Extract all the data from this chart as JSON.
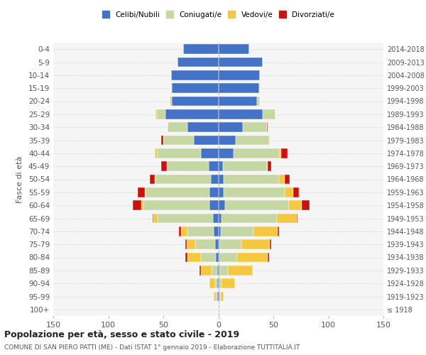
{
  "age_groups": [
    "100+",
    "95-99",
    "90-94",
    "85-89",
    "80-84",
    "75-79",
    "70-74",
    "65-69",
    "60-64",
    "55-59",
    "50-54",
    "45-49",
    "40-44",
    "35-39",
    "30-34",
    "25-29",
    "20-24",
    "15-19",
    "10-14",
    "5-9",
    "0-4"
  ],
  "birth_years": [
    "≤ 1918",
    "1919-1923",
    "1924-1928",
    "1929-1933",
    "1934-1938",
    "1939-1943",
    "1944-1948",
    "1949-1953",
    "1954-1958",
    "1959-1963",
    "1964-1968",
    "1969-1973",
    "1974-1978",
    "1979-1983",
    "1984-1988",
    "1989-1993",
    "1994-1998",
    "1999-2003",
    "2004-2008",
    "2009-2013",
    "2014-2018"
  ],
  "colors": {
    "celibi": "#4472c4",
    "coniugati": "#c5d8a4",
    "vedovi": "#f5c842",
    "divorziati": "#cc1111"
  },
  "males": {
    "celibi": [
      0,
      1,
      1,
      1,
      2,
      3,
      4,
      5,
      8,
      8,
      7,
      9,
      16,
      22,
      28,
      48,
      42,
      42,
      43,
      37,
      32
    ],
    "coniugati": [
      0,
      1,
      2,
      5,
      14,
      18,
      24,
      50,
      60,
      58,
      50,
      38,
      40,
      28,
      18,
      8,
      2,
      1,
      0,
      0,
      0
    ],
    "vedovi": [
      0,
      2,
      5,
      10,
      12,
      8,
      6,
      4,
      2,
      1,
      1,
      0,
      2,
      0,
      0,
      1,
      0,
      0,
      0,
      0,
      0
    ],
    "divorziati": [
      0,
      0,
      0,
      1,
      2,
      1,
      2,
      1,
      8,
      6,
      4,
      5,
      0,
      2,
      0,
      0,
      0,
      0,
      0,
      0,
      0
    ]
  },
  "females": {
    "celibi": [
      0,
      1,
      0,
      1,
      1,
      1,
      2,
      3,
      6,
      5,
      5,
      4,
      14,
      16,
      22,
      40,
      35,
      37,
      38,
      40,
      28
    ],
    "coniugati": [
      0,
      1,
      3,
      8,
      16,
      20,
      30,
      50,
      58,
      55,
      50,
      40,
      42,
      30,
      22,
      12,
      3,
      1,
      0,
      0,
      0
    ],
    "vedovi": [
      1,
      3,
      12,
      22,
      28,
      26,
      22,
      18,
      12,
      8,
      5,
      1,
      1,
      1,
      0,
      0,
      0,
      0,
      0,
      0,
      0
    ],
    "divorziati": [
      0,
      0,
      0,
      0,
      1,
      1,
      1,
      1,
      7,
      5,
      5,
      3,
      6,
      0,
      1,
      0,
      0,
      0,
      0,
      0,
      0
    ]
  },
  "title": "Popolazione per età, sesso e stato civile - 2019",
  "subtitle": "COMUNE DI SAN PIERO PATTI (ME) - Dati ISTAT 1° gennaio 2019 - Elaborazione TUTTITALIA.IT",
  "ylabel_left": "Fasce di età",
  "legend_labels": [
    "Celibi/Nubili",
    "Coniugati/e",
    "Vedovi/e",
    "Divorziati/e"
  ],
  "xlim": 150,
  "background_color": "#f5f5f5"
}
